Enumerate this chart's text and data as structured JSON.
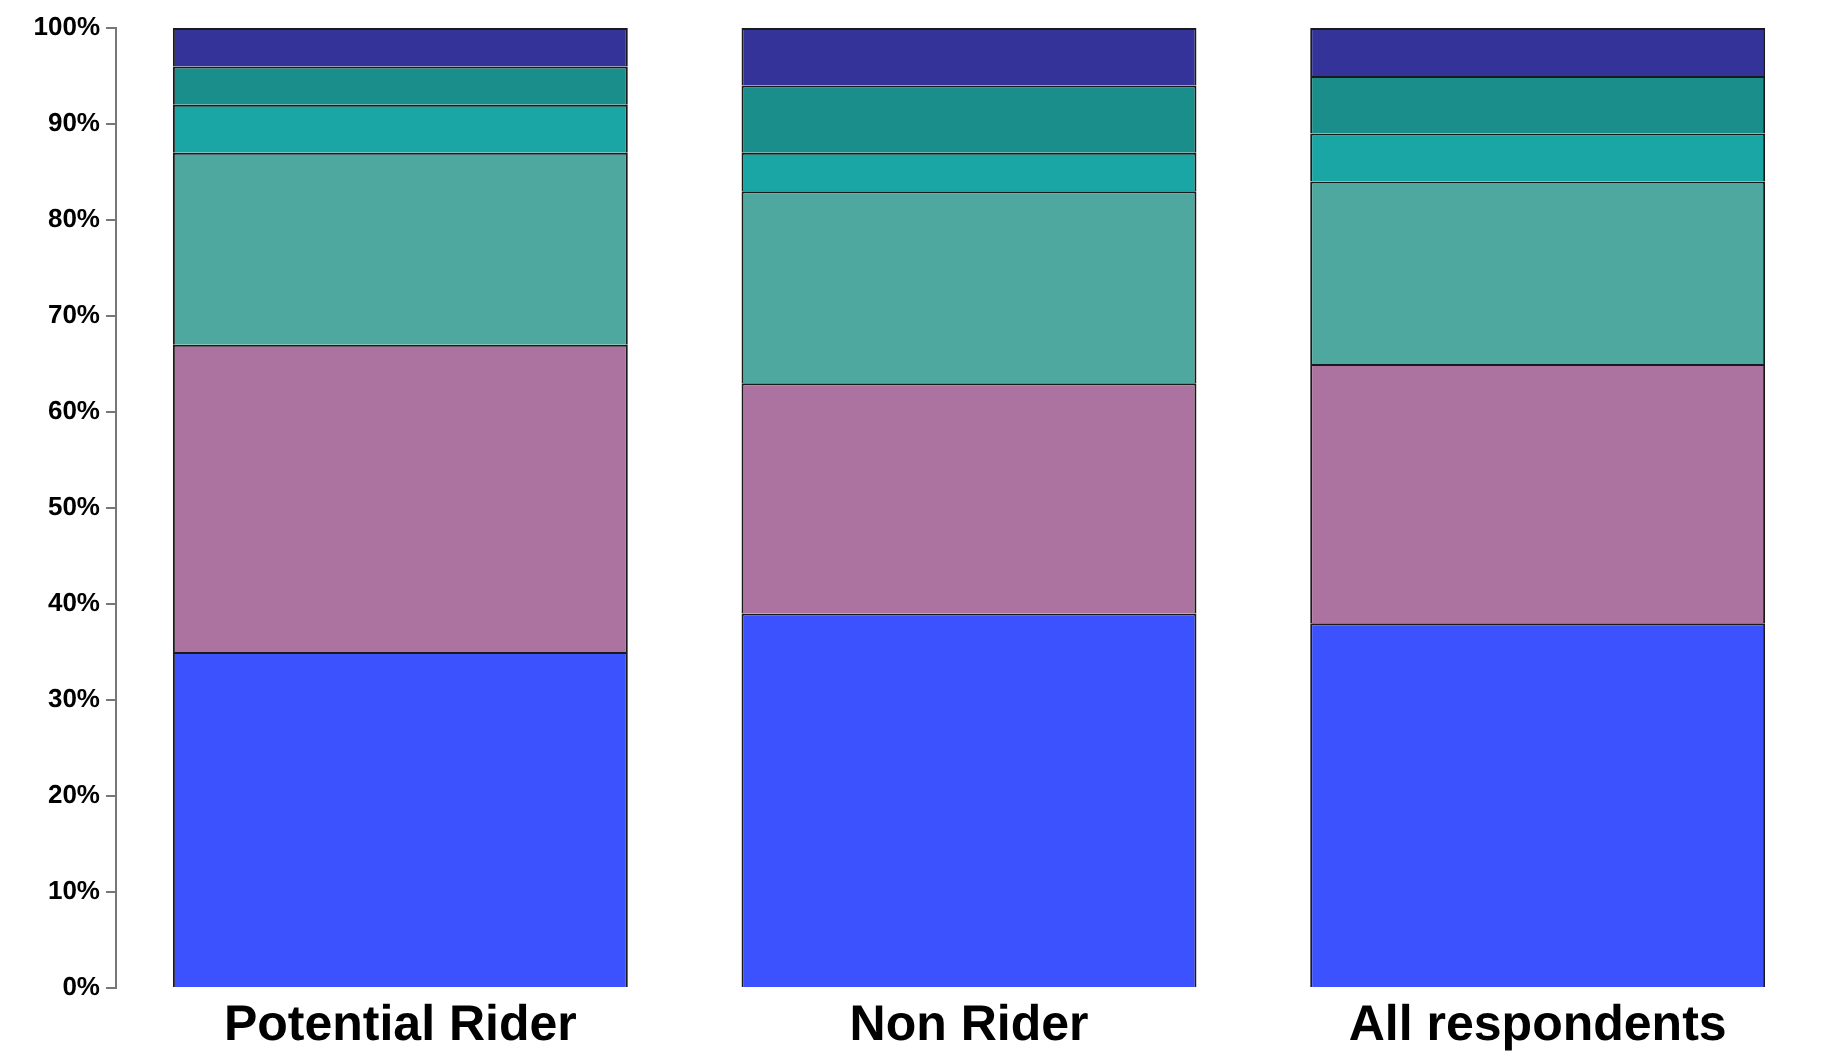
{
  "chart_data": {
    "type": "bar",
    "stacked": true,
    "categories": [
      "Potential Rider",
      "Non Rider",
      "All respondents"
    ],
    "series": [
      {
        "color": "#3d52ff",
        "values": [
          35,
          39,
          38
        ]
      },
      {
        "color": "#ad73a0",
        "values": [
          32,
          24,
          27
        ]
      },
      {
        "color": "#4fa89f",
        "values": [
          20,
          20,
          19
        ]
      },
      {
        "color": "#1ba6a6",
        "values": [
          5,
          4,
          5
        ]
      },
      {
        "color": "#1a8e8a",
        "values": [
          4,
          7,
          6
        ]
      },
      {
        "color": "#333399",
        "values": [
          4,
          6,
          5
        ]
      }
    ],
    "ylim": [
      0,
      100
    ],
    "yticks": [
      {
        "value": 0,
        "label": "0%"
      },
      {
        "value": 10,
        "label": "10%"
      },
      {
        "value": 20,
        "label": "20%"
      },
      {
        "value": 30,
        "label": "30%"
      },
      {
        "value": 40,
        "label": "40%"
      },
      {
        "value": 50,
        "label": "50%"
      },
      {
        "value": 60,
        "label": "60%"
      },
      {
        "value": 70,
        "label": "70%"
      },
      {
        "value": 80,
        "label": "80%"
      },
      {
        "value": 90,
        "label": "90%"
      },
      {
        "value": 100,
        "label": "100%"
      }
    ]
  }
}
